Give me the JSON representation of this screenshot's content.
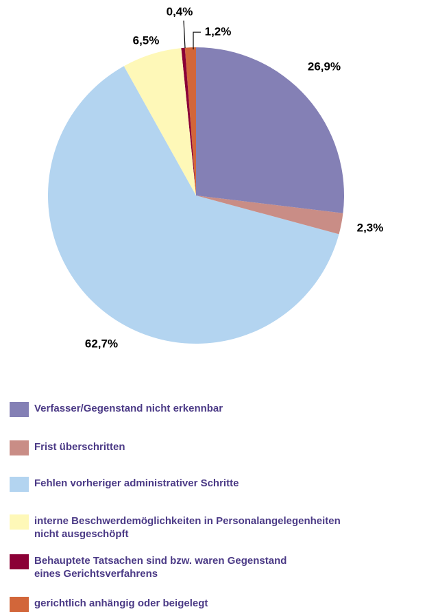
{
  "chart_data": {
    "type": "pie",
    "categories": [
      "Verfasser/Gegenstand nicht erkennbar",
      "Frist überschritten",
      "Fehlen vorheriger administrativer Schritte",
      "interne Beschwerdemöglichkeiten in Personalangelegenheiten\nnicht ausgeschöpft",
      "Behauptete Tatsachen sind bzw. waren Gegenstand\neines Gerichtsverfahrens",
      "gerichtlich anhängig oder beigelegt"
    ],
    "values": [
      26.9,
      2.3,
      62.7,
      6.5,
      0.4,
      1.2
    ],
    "value_labels": [
      "26,9%",
      "2,3%",
      "62,7%",
      "6,5%",
      "0,4%",
      "1,2%"
    ],
    "colors": [
      "#8480b5",
      "#c98d86",
      "#b3d4f0",
      "#fef8b8",
      "#8b0036",
      "#d2663a"
    ]
  }
}
